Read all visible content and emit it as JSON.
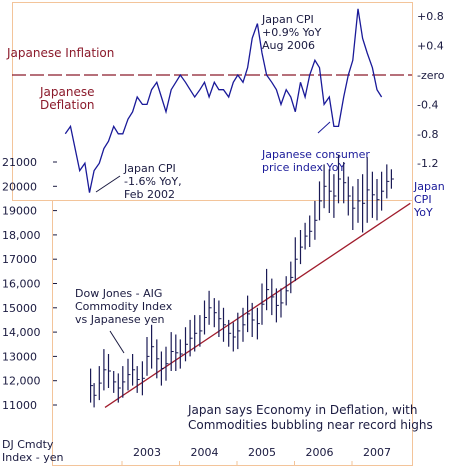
{
  "colors": {
    "frame": "#f3c49a",
    "cpi_line": "#1a1a99",
    "zero_line": "#8b1a2b",
    "trend_line": "#a01c2c",
    "bars": "#1a1a55",
    "inflation_text": "#8b1a2b",
    "deflation_text": "#8b1a2b",
    "blue_text": "#1a1a99",
    "dark_text": "#1a1a40"
  },
  "chart_data": [
    {
      "type": "line",
      "series": [
        {
          "name": "Japan CPI YoY",
          "x": [
            2001.58,
            2001.67,
            2001.75,
            2001.83,
            2001.92,
            2002.0,
            2002.08,
            2002.17,
            2002.25,
            2002.33,
            2002.42,
            2002.5,
            2002.58,
            2002.67,
            2002.75,
            2002.83,
            2002.92,
            2003.0,
            2003.08,
            2003.17,
            2003.25,
            2003.33,
            2003.42,
            2003.5,
            2003.58,
            2003.67,
            2003.75,
            2003.83,
            2003.92,
            2004.0,
            2004.08,
            2004.17,
            2004.25,
            2004.33,
            2004.42,
            2004.5,
            2004.58,
            2004.67,
            2004.75,
            2004.83,
            2004.92,
            2005.0,
            2005.08,
            2005.17,
            2005.25,
            2005.33,
            2005.42,
            2005.5,
            2005.58,
            2005.67,
            2005.75,
            2005.83,
            2005.92,
            2006.0,
            2006.08,
            2006.17,
            2006.25,
            2006.33,
            2006.42,
            2006.5,
            2006.58,
            2006.67,
            2006.75,
            2006.83,
            2006.92,
            2007.0,
            2007.08
          ],
          "values": [
            -0.8,
            -0.7,
            -1.0,
            -1.3,
            -1.2,
            -1.6,
            -1.3,
            -1.2,
            -1.0,
            -0.9,
            -0.7,
            -0.8,
            -0.8,
            -0.6,
            -0.5,
            -0.3,
            -0.4,
            -0.4,
            -0.2,
            -0.1,
            -0.3,
            -0.5,
            -0.2,
            -0.1,
            0.0,
            -0.1,
            -0.2,
            -0.3,
            -0.2,
            -0.1,
            -0.3,
            -0.1,
            -0.2,
            -0.2,
            -0.3,
            -0.1,
            0.0,
            -0.1,
            0.1,
            0.5,
            0.7,
            0.3,
            0.0,
            -0.1,
            -0.2,
            -0.4,
            -0.2,
            -0.3,
            -0.5,
            -0.1,
            -0.3,
            0.0,
            0.2,
            0.1,
            -0.4,
            -0.3,
            -0.7,
            -0.7,
            -0.3,
            0.0,
            0.2,
            0.9,
            0.5,
            0.3,
            0.1,
            -0.2,
            -0.3
          ]
        }
      ],
      "y_ticks": [
        "+0.8",
        "+0.4",
        "-zero",
        "-0.4",
        "-0.8",
        "-1.2"
      ],
      "labels": {
        "inflation": "Japanese Inflation",
        "deflation_line1": "Japanese",
        "deflation_line2": "Deflation",
        "peak_line1": "Japan CPI",
        "peak_line2": "+0.9% YoY",
        "peak_line3": "Aug 2006",
        "trough_line1": "Japan CPI",
        "trough_line2": "-1.6% YoY,",
        "trough_line3": "Feb 2002",
        "series_line1": "Japanese consumer",
        "series_line2": "price index YoY",
        "axis_line1": "Japan",
        "axis_line2": "CPI",
        "axis_line3": "YoY"
      }
    },
    {
      "type": "bar",
      "series": [
        {
          "name": "Dow Jones - AIG Commodity Index vs Japanese yen",
          "x": [
            2002.02,
            2002.08,
            2002.17,
            2002.25,
            2002.33,
            2002.42,
            2002.5,
            2002.58,
            2002.67,
            2002.75,
            2002.83,
            2002.92,
            2003.0,
            2003.08,
            2003.17,
            2003.25,
            2003.33,
            2003.42,
            2003.5,
            2003.58,
            2003.67,
            2003.75,
            2003.83,
            2003.92,
            2004.0,
            2004.08,
            2004.17,
            2004.25,
            2004.33,
            2004.42,
            2004.5,
            2004.58,
            2004.67,
            2004.75,
            2004.83,
            2004.92,
            2005.0,
            2005.08,
            2005.17,
            2005.25,
            2005.33,
            2005.42,
            2005.5,
            2005.58,
            2005.67,
            2005.75,
            2005.83,
            2005.92,
            2006.0,
            2006.08,
            2006.17,
            2006.25,
            2006.33,
            2006.42,
            2006.5,
            2006.58,
            2006.67,
            2006.75,
            2006.83,
            2006.92,
            2007.0,
            2007.08,
            2007.17,
            2007.25
          ],
          "low": [
            11100,
            10900,
            11200,
            11600,
            11700,
            11500,
            11100,
            11300,
            11600,
            11800,
            11500,
            11400,
            12200,
            12500,
            12100,
            11800,
            12000,
            12400,
            12400,
            12500,
            12800,
            13000,
            13200,
            13400,
            13900,
            14300,
            14200,
            13800,
            13600,
            13400,
            13200,
            13300,
            13600,
            14000,
            13800,
            13700,
            14300,
            14900,
            14700,
            14400,
            14600,
            15100,
            15600,
            16100,
            16800,
            17400,
            17500,
            17800,
            18600,
            19100,
            18900,
            18700,
            19300,
            19300,
            18800,
            18200,
            18500,
            18100,
            18500,
            18700,
            18600,
            19000,
            19500,
            19900
          ],
          "high": [
            12500,
            11900,
            12600,
            13300,
            13100,
            12400,
            12300,
            12600,
            12900,
            13100,
            12600,
            12800,
            13800,
            14300,
            13700,
            13200,
            13400,
            14000,
            13900,
            13700,
            14200,
            14500,
            14700,
            14700,
            15300,
            15700,
            15400,
            15300,
            15000,
            14500,
            14400,
            14800,
            15000,
            15500,
            15200,
            15000,
            16000,
            16600,
            16200,
            15800,
            15800,
            16300,
            16900,
            17900,
            18200,
            18500,
            18800,
            19400,
            20200,
            20900,
            20700,
            20500,
            21300,
            21000,
            20400,
            20000,
            20300,
            20500,
            21200,
            20600,
            20300,
            20600,
            20900,
            20700
          ]
        }
      ],
      "ylim": [
        10700,
        21400
      ],
      "y_ticks": [
        11000,
        12000,
        13000,
        14000,
        15000,
        16000,
        17000,
        18000,
        19000,
        20000,
        21000
      ],
      "y_tick_labels": [
        "11000",
        "12,000",
        "13000",
        "14,000",
        "15000",
        "16,000",
        "17000",
        "18,000",
        "19000",
        "20000",
        "21000"
      ],
      "x_ticks": [
        2003,
        2004,
        2005,
        2006,
        2007
      ],
      "x_tick_labels": [
        "2003",
        "2004",
        "2005",
        "2006",
        "2007"
      ],
      "trendline": {
        "x": [
          2002.27,
          2007.58
        ],
        "y": [
          10900,
          19300
        ]
      },
      "labels": {
        "series_line1": "Dow Jones - AIG",
        "series_line2": "Commodity Index",
        "series_line3": "vs Japanese yen",
        "axis_line1": "DJ Cmdty",
        "axis_line2": "Index - yen",
        "caption_line1": "Japan says Economy in Deflation, with",
        "caption_line2": "Commodities bubbling near record highs"
      }
    }
  ]
}
